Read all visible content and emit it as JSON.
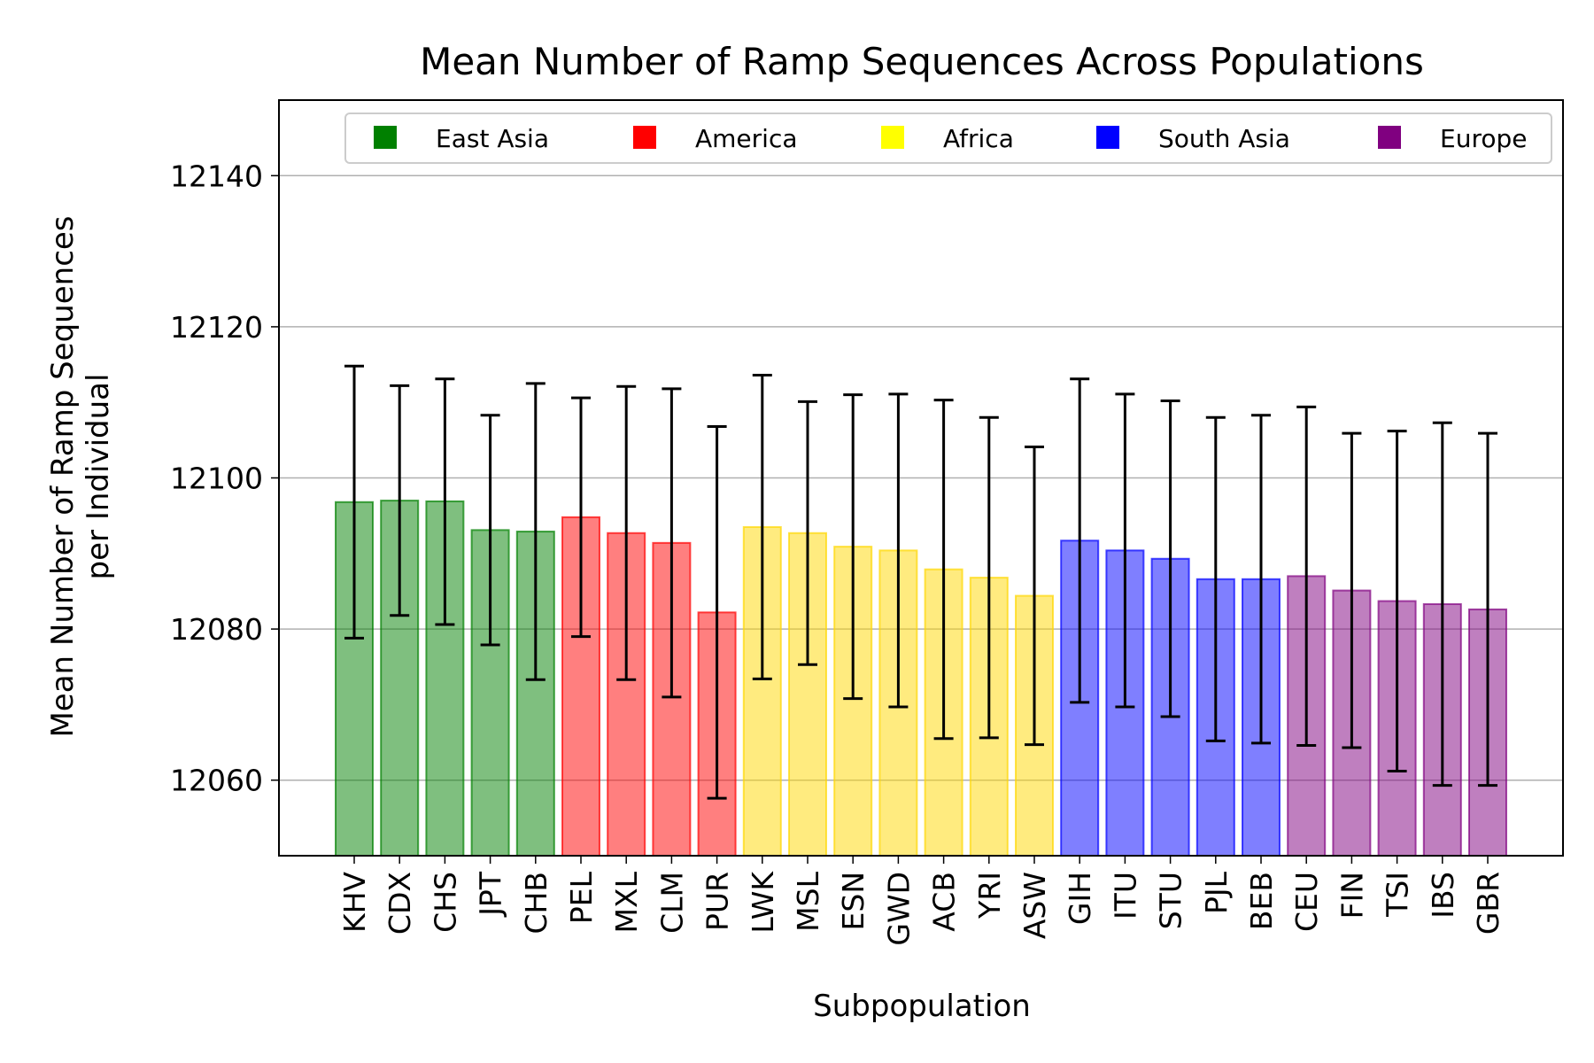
{
  "chart_data": {
    "type": "bar",
    "title": "Mean Number of Ramp Sequences Across Populations",
    "xlabel": "Subpopulation",
    "ylabel_lines": [
      "Mean Number of Ramp Sequences",
      "per Individual"
    ],
    "ylim": [
      12050,
      12150
    ],
    "yticks": [
      12060,
      12080,
      12100,
      12120,
      12140
    ],
    "grid": {
      "y": true,
      "x": false
    },
    "legend_position": "top",
    "regions": [
      {
        "name": "East Asia",
        "color": "#008000"
      },
      {
        "name": "America",
        "color": "#ff0000"
      },
      {
        "name": "Africa",
        "color": "#ffff00"
      },
      {
        "name": "South Asia",
        "color": "#0000ff"
      },
      {
        "name": "Europe",
        "color": "#800080"
      }
    ],
    "bars": [
      {
        "category": "KHV",
        "value": 12096.8,
        "err_low": 12078.8,
        "err_high": 12114.8,
        "region": "East Asia"
      },
      {
        "category": "CDX",
        "value": 12097.0,
        "err_low": 12081.8,
        "err_high": 12112.2,
        "region": "East Asia"
      },
      {
        "category": "CHS",
        "value": 12096.9,
        "err_low": 12080.6,
        "err_high": 12113.1,
        "region": "East Asia"
      },
      {
        "category": "JPT",
        "value": 12093.1,
        "err_low": 12077.9,
        "err_high": 12108.3,
        "region": "East Asia"
      },
      {
        "category": "CHB",
        "value": 12092.9,
        "err_low": 12073.3,
        "err_high": 12112.5,
        "region": "East Asia"
      },
      {
        "category": "PEL",
        "value": 12094.8,
        "err_low": 12079.0,
        "err_high": 12110.6,
        "region": "America"
      },
      {
        "category": "MXL",
        "value": 12092.7,
        "err_low": 12073.3,
        "err_high": 12112.1,
        "region": "America"
      },
      {
        "category": "CLM",
        "value": 12091.4,
        "err_low": 12071.0,
        "err_high": 12111.8,
        "region": "America"
      },
      {
        "category": "PUR",
        "value": 12082.2,
        "err_low": 12057.6,
        "err_high": 12106.8,
        "region": "America"
      },
      {
        "category": "LWK",
        "value": 12093.5,
        "err_low": 12073.4,
        "err_high": 12113.6,
        "region": "Africa"
      },
      {
        "category": "MSL",
        "value": 12092.7,
        "err_low": 12075.3,
        "err_high": 12110.1,
        "region": "Africa"
      },
      {
        "category": "ESN",
        "value": 12090.9,
        "err_low": 12070.8,
        "err_high": 12111.0,
        "region": "Africa"
      },
      {
        "category": "GWD",
        "value": 12090.4,
        "err_low": 12069.7,
        "err_high": 12111.1,
        "region": "Africa"
      },
      {
        "category": "ACB",
        "value": 12087.9,
        "err_low": 12065.5,
        "err_high": 12110.3,
        "region": "Africa"
      },
      {
        "category": "YRI",
        "value": 12086.8,
        "err_low": 12065.6,
        "err_high": 12108.0,
        "region": "Africa"
      },
      {
        "category": "ASW",
        "value": 12084.4,
        "err_low": 12064.7,
        "err_high": 12104.1,
        "region": "Africa"
      },
      {
        "category": "GIH",
        "value": 12091.7,
        "err_low": 12070.3,
        "err_high": 12113.1,
        "region": "South Asia"
      },
      {
        "category": "ITU",
        "value": 12090.4,
        "err_low": 12069.7,
        "err_high": 12111.1,
        "region": "South Asia"
      },
      {
        "category": "STU",
        "value": 12089.3,
        "err_low": 12068.4,
        "err_high": 12110.2,
        "region": "South Asia"
      },
      {
        "category": "PJL",
        "value": 12086.6,
        "err_low": 12065.2,
        "err_high": 12108.0,
        "region": "South Asia"
      },
      {
        "category": "BEB",
        "value": 12086.6,
        "err_low": 12064.9,
        "err_high": 12108.3,
        "region": "South Asia"
      },
      {
        "category": "CEU",
        "value": 12087.0,
        "err_low": 12064.6,
        "err_high": 12109.4,
        "region": "Europe"
      },
      {
        "category": "FIN",
        "value": 12085.1,
        "err_low": 12064.3,
        "err_high": 12105.9,
        "region": "Europe"
      },
      {
        "category": "TSI",
        "value": 12083.7,
        "err_low": 12061.2,
        "err_high": 12106.2,
        "region": "Europe"
      },
      {
        "category": "IBS",
        "value": 12083.3,
        "err_low": 12059.3,
        "err_high": 12107.3,
        "region": "Europe"
      },
      {
        "category": "GBR",
        "value": 12082.6,
        "err_low": 12059.3,
        "err_high": 12105.9,
        "region": "Europe"
      }
    ]
  },
  "style": {
    "bar_alpha": 0.5,
    "bar_colors": {
      "East Asia": "#008000",
      "America": "#ff0000",
      "Africa": "#ffd700",
      "South Asia": "#0000ff",
      "Europe": "#800080"
    },
    "error_bar_color": "#000000",
    "grid_color": "#b0b0b0"
  }
}
